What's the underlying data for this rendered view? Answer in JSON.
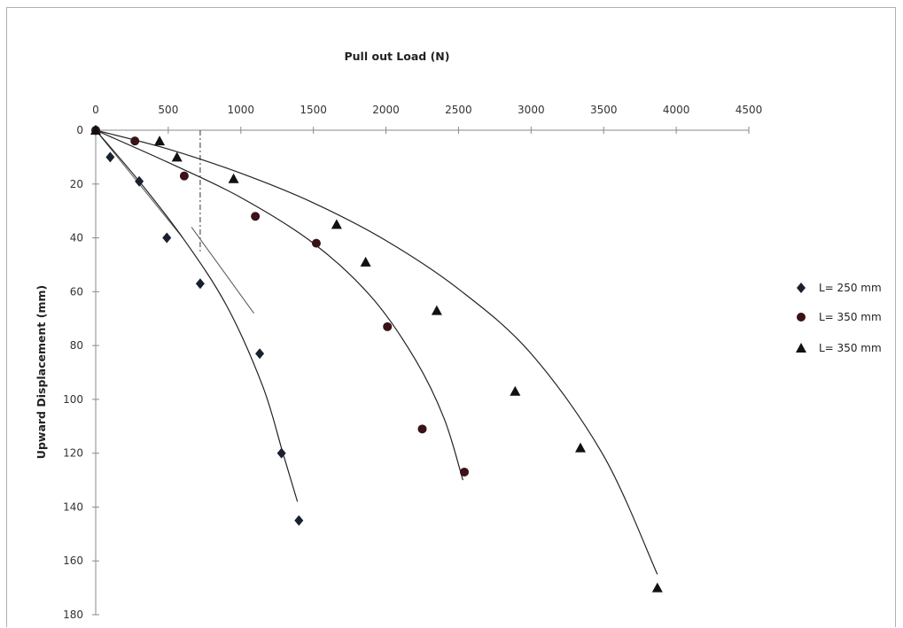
{
  "chart_data": {
    "type": "scatter",
    "xlabel": "Pull out Load (N)",
    "ylabel": "Upward Displacement  (mm)",
    "xlim": [
      0,
      4500
    ],
    "ylim": [
      0,
      180
    ],
    "x_ticks": [
      "0",
      "500",
      "1000",
      "1500",
      "2000",
      "2500",
      "3000",
      "3500",
      "4000",
      "4500"
    ],
    "y_ticks": [
      "0",
      "20",
      "40",
      "60",
      "80",
      "100",
      "120",
      "140",
      "160",
      "180"
    ],
    "x_axis_position": "top",
    "y_axis_inverted": true,
    "grid": false,
    "legend_position": "right",
    "series": [
      {
        "name": "L= 250 mm",
        "marker": "diamond",
        "color": "#1a2030",
        "points": [
          [
            0,
            0
          ],
          [
            100,
            10
          ],
          [
            300,
            19
          ],
          [
            490,
            40
          ],
          [
            720,
            57
          ],
          [
            1130,
            83
          ],
          [
            1280,
            120
          ],
          [
            1400,
            145
          ]
        ],
        "trend": [
          [
            0,
            0
          ],
          [
            300,
            19
          ],
          [
            600,
            40
          ],
          [
            900,
            65
          ],
          [
            1150,
            95
          ],
          [
            1290,
            120
          ],
          [
            1390,
            138
          ]
        ]
      },
      {
        "name": "L= 350 mm",
        "marker": "circle",
        "color": "#3a1218",
        "points": [
          [
            0,
            0
          ],
          [
            270,
            4
          ],
          [
            610,
            17
          ],
          [
            1100,
            32
          ],
          [
            1520,
            42
          ],
          [
            2010,
            73
          ],
          [
            2250,
            111
          ],
          [
            2540,
            127
          ]
        ],
        "trend": [
          [
            0,
            0
          ],
          [
            500,
            12
          ],
          [
            1000,
            25
          ],
          [
            1500,
            42
          ],
          [
            1900,
            62
          ],
          [
            2200,
            85
          ],
          [
            2400,
            107
          ],
          [
            2530,
            130
          ]
        ]
      },
      {
        "name": "L= 350 mm",
        "marker": "triangle",
        "color": "#111111",
        "points": [
          [
            0,
            0
          ],
          [
            440,
            4
          ],
          [
            560,
            10
          ],
          [
            950,
            18
          ],
          [
            1660,
            35
          ],
          [
            1860,
            49
          ],
          [
            2350,
            67
          ],
          [
            2890,
            97
          ],
          [
            3340,
            118
          ],
          [
            3870,
            170
          ]
        ],
        "trend": [
          [
            0,
            0
          ],
          [
            500,
            7
          ],
          [
            1000,
            16
          ],
          [
            1500,
            27
          ],
          [
            2000,
            41
          ],
          [
            2500,
            59
          ],
          [
            3000,
            83
          ],
          [
            3500,
            121
          ],
          [
            3870,
            165
          ]
        ]
      }
    ],
    "annotations": [
      {
        "type": "vline",
        "x": 720,
        "y_range": [
          0,
          45
        ],
        "style": "dash-dot"
      },
      {
        "type": "tangent",
        "from": [
          0,
          0
        ],
        "to": [
          600,
          40
        ]
      },
      {
        "type": "tangent",
        "from": [
          660,
          36
        ],
        "to": [
          1090,
          68
        ]
      }
    ]
  }
}
